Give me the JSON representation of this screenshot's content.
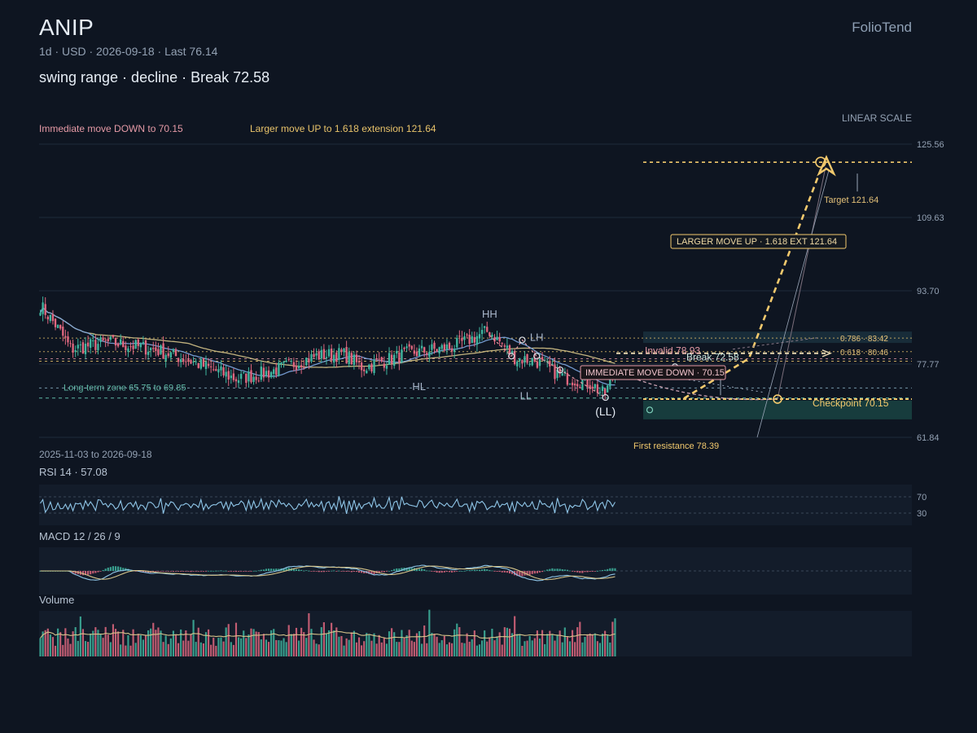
{
  "header": {
    "ticker": "ANIP",
    "meta": "1d · USD · 2026-09-18 · Last 76.14",
    "scenario": "swing range · decline · Break 72.58",
    "brand": "FolioTend"
  },
  "legend": {
    "down": "Immediate move DOWN to 70.15",
    "up": "Larger move UP to 1.618 extension 121.64"
  },
  "scale_label": "LINEAR SCALE",
  "date_range": "2025-11-03 to 2026-09-18",
  "panels": {
    "rsi": "RSI 14 · 57.08",
    "macd": "MACD 12 / 26 / 9",
    "volume": "Volume"
  },
  "colors": {
    "background": "#0e1521",
    "up_candle": "#3fb6a0",
    "down_candle": "#e0677f",
    "ma_fast": "#7da6e0",
    "ma_slow": "#d6c48a",
    "target": "#f2c96d",
    "pink": "#e59aa6",
    "zone": "#2c8f78"
  },
  "chart_data": {
    "type": "candlestick",
    "period": "1d",
    "x_start": "2025-11-03",
    "x_end": "2026-09-18",
    "last_close": 76.14,
    "ylim": [
      61.84,
      125.56
    ],
    "y_ticks": [
      "125.56",
      "109.63",
      "93.70",
      "77.77",
      "61.84"
    ],
    "price_anchors": [
      {
        "date": "2025-11-03",
        "close": 90.5
      },
      {
        "date": "2025-11-12",
        "close": 86
      },
      {
        "date": "2025-11-20",
        "close": 81
      },
      {
        "date": "2025-12-10",
        "close": 82.5
      },
      {
        "date": "2026-01-05",
        "close": 81
      },
      {
        "date": "2026-01-25",
        "close": 78.5
      },
      {
        "date": "2026-02-20",
        "close": 74.5
      },
      {
        "date": "2026-03-10",
        "close": 76
      },
      {
        "date": "2026-04-05",
        "close": 79.5
      },
      {
        "date": "2026-04-20",
        "close": 80
      },
      {
        "date": "2026-05-01",
        "close": 77
      },
      {
        "date": "2026-05-25",
        "close": 80
      },
      {
        "date": "2026-06-20",
        "close": 81.5
      },
      {
        "date": "2026-07-10",
        "close": 85
      },
      {
        "date": "2026-07-25",
        "close": 79
      },
      {
        "date": "2026-08-05",
        "close": 78.5
      },
      {
        "date": "2026-08-20",
        "close": 75
      },
      {
        "date": "2026-09-05",
        "close": 73.5
      },
      {
        "date": "2026-09-12",
        "close": 71
      },
      {
        "date": "2026-09-18",
        "close": 76.14
      }
    ],
    "levels": [
      {
        "label": "Invalid 78.93",
        "value": 78.93,
        "color": "#e59aa6"
      },
      {
        "label": "Break 72.58",
        "value": 72.58,
        "color": "#9fd8c8"
      },
      {
        "label": "Checkpoint 70.15",
        "value": 70.15,
        "color": "#f2c96d"
      },
      {
        "label": "Target 121.64",
        "value": 121.64,
        "color": "#f2c96d"
      },
      {
        "label": "First resistance 78.39",
        "value": 78.39,
        "color": "#f2c96d"
      }
    ],
    "fib_levels": [
      {
        "label": "0.786 · 83.42",
        "value": 83.42
      },
      {
        "label": "0.618 · 80.46",
        "value": 80.46
      }
    ],
    "zones": [
      {
        "label": "Long-term zone 65.75 to 69.85",
        "low": 65.75,
        "high": 69.85
      }
    ],
    "swing_labels": [
      {
        "label": "HH",
        "date": "2026-07-10",
        "price": 85
      },
      {
        "label": "HL",
        "date": "2026-06-01",
        "price": 76
      },
      {
        "label": "LH",
        "date": "2026-08-05",
        "price": 80
      },
      {
        "label": "LL",
        "date": "2026-07-30",
        "price": 74
      },
      {
        "label": "(LL)",
        "date": "2026-09-12",
        "price": 70.5
      }
    ],
    "callouts": {
      "up": "LARGER MOVE UP · 1.618 EXT 121.64",
      "down": "IMMEDIATE MOVE DOWN · 70.15"
    },
    "projection": {
      "checkpoint": 70.15,
      "target": 121.64
    },
    "rsi": {
      "period": 14,
      "last": 57.08,
      "levels": [
        70,
        30
      ],
      "level_labels": [
        "70",
        "30"
      ]
    },
    "macd": {
      "fast": 12,
      "slow": 26,
      "signal": 9
    }
  }
}
